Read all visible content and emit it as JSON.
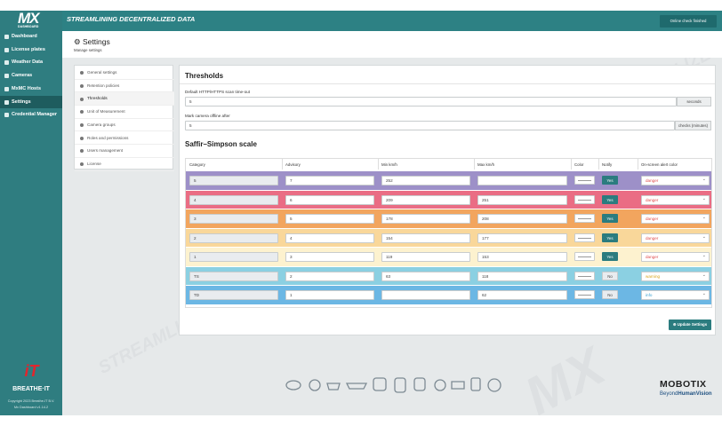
{
  "header": {
    "logo": "MX",
    "logo_sub": "DASHBOARD",
    "tagline": "STREAMLINING DECENTRALIZED DATA",
    "status_button": "Online check finished"
  },
  "sidebar": {
    "items": [
      "Dashboard",
      "License plates",
      "Weather Data",
      "Cameras",
      "MxMC Hosts",
      "Settings",
      "Credential Manager"
    ],
    "active": 5,
    "brand": "BREATHE·IT",
    "copyright": "Copyright 2023 Breathe-IT B.V.",
    "version": "Mx Dashboard v1.14.2"
  },
  "page": {
    "title": "Settings",
    "subtitle": "Manage settings"
  },
  "settings_menu": {
    "items": [
      "General settings",
      "Retention policies",
      "Thresholds",
      "Unit of Measurement",
      "Camera groups",
      "Roles and permissions",
      "Users management",
      "License"
    ],
    "active": 2
  },
  "thresholds": {
    "title": "Thresholds",
    "fields": [
      {
        "label": "Default HTTP/HTTPS scan time-out",
        "value": "5",
        "unit": "seconds"
      },
      {
        "label": "Mark camera offline after",
        "value": "5",
        "unit": "checks (minutes)"
      }
    ],
    "scale_title": "Saffir–Simpson scale",
    "table": {
      "columns": [
        "Category",
        "Advisory",
        "Min km/h",
        "Max km/h",
        "Color",
        "Notify",
        "On-screen alert color"
      ],
      "rows": [
        {
          "category": "5",
          "advisory": "7",
          "min": "252",
          "max": null,
          "notify": "Yes",
          "alert": "danger",
          "color": "#9d90c8"
        },
        {
          "category": "4",
          "advisory": "6",
          "min": "209",
          "max": "251",
          "notify": "Yes",
          "alert": "danger",
          "color": "#ea6d84"
        },
        {
          "category": "3",
          "advisory": "5",
          "min": "178",
          "max": "208",
          "notify": "Yes",
          "alert": "danger",
          "color": "#f2a55e"
        },
        {
          "category": "2",
          "advisory": "4",
          "min": "154",
          "max": "177",
          "notify": "Yes",
          "alert": "danger",
          "color": "#f9d79a"
        },
        {
          "category": "1",
          "advisory": "3",
          "min": "119",
          "max": "153",
          "notify": "Yes",
          "alert": "danger",
          "color": "#fdf2cf"
        },
        {
          "category": "TS",
          "advisory": "2",
          "min": "63",
          "max": "118",
          "notify": "No",
          "alert": "warning",
          "color": "#8bd0e2"
        },
        {
          "category": "TD",
          "advisory": "1",
          "min": null,
          "max": "62",
          "notify": "No",
          "alert": "info",
          "color": "#6cb7e4"
        }
      ]
    },
    "submit": "Update Settings"
  },
  "footer": {
    "brand": "MOBOTIX",
    "slogan_a": "Beyond",
    "slogan_b": "HumanVision"
  }
}
